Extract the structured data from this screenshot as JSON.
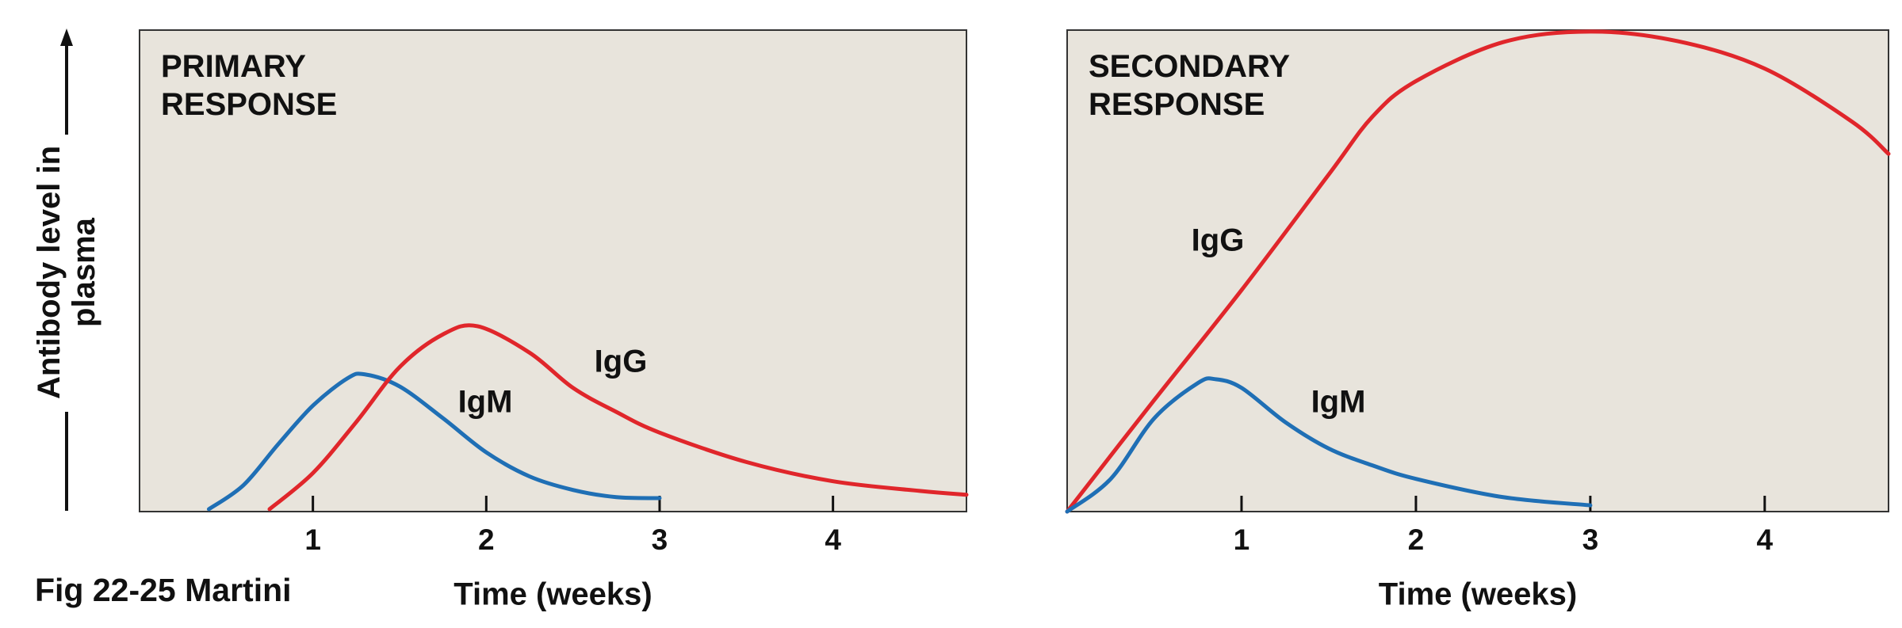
{
  "caption": "Fig 22-25 Martini",
  "chart_data": [
    {
      "type": "line",
      "title": "PRIMARY RESPONSE",
      "xlabel": "Time (weeks)",
      "ylabel": "Antibody level in plasma",
      "xlim": [
        0,
        4.77
      ],
      "ylim": [
        0,
        100
      ],
      "xticks": [
        1,
        2,
        3,
        4
      ],
      "series": [
        {
          "name": "IgM",
          "color": "#1f6fb5",
          "x": [
            0.4,
            0.6,
            0.8,
            1.0,
            1.2,
            1.3,
            1.5,
            1.75,
            2.0,
            2.25,
            2.5,
            2.75,
            3.0
          ],
          "values": [
            0.5,
            5.5,
            14,
            22,
            27.7,
            28.5,
            26,
            19.4,
            12.3,
            7.3,
            4.5,
            3,
            2.8
          ]
        },
        {
          "name": "IgG",
          "color": "#e0262b",
          "x": [
            0.75,
            1.0,
            1.25,
            1.5,
            1.75,
            1.95,
            2.25,
            2.5,
            2.75,
            3.0,
            3.5,
            4.0,
            4.5,
            4.77
          ],
          "values": [
            0.5,
            8,
            18.6,
            30,
            36.8,
            38.5,
            33,
            25.7,
            20.7,
            16.4,
            10.3,
            6.3,
            4.3,
            3.5
          ]
        }
      ]
    },
    {
      "type": "line",
      "title": "SECONDARY RESPONSE",
      "xlabel": "Time (weeks)",
      "xlim": [
        0,
        4.71
      ],
      "ylim": [
        0,
        100
      ],
      "xticks": [
        1,
        2,
        3,
        4
      ],
      "series": [
        {
          "name": "IgG",
          "color": "#e0262b",
          "x": [
            0,
            0.5,
            1.0,
            1.5,
            1.75,
            2.0,
            2.5,
            3.0,
            3.5,
            4.0,
            4.5,
            4.71
          ],
          "values": [
            0,
            23.2,
            46,
            70,
            82,
            89.4,
            97.5,
            99.7,
            97.7,
            92,
            81,
            74.3
          ]
        },
        {
          "name": "IgM",
          "color": "#1f6fb5",
          "x": [
            0,
            0.25,
            0.5,
            0.75,
            0.85,
            1.0,
            1.25,
            1.5,
            1.75,
            2.0,
            2.5,
            3.0
          ],
          "values": [
            0,
            6.8,
            19.4,
            26.7,
            27.5,
            25.7,
            18.6,
            13.1,
            9.6,
            6.8,
            3,
            1.3
          ]
        }
      ]
    }
  ]
}
